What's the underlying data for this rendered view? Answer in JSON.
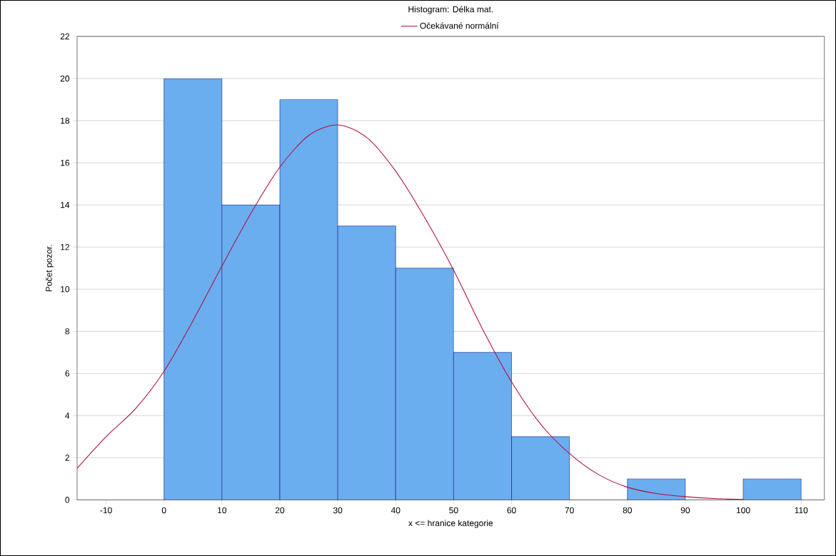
{
  "chart_data": {
    "type": "histogram",
    "title": "Histogram: Délka mat.",
    "xlabel": "x <= hranice kategorie",
    "ylabel": "Počet pozor.",
    "xlim": [
      -15,
      114
    ],
    "xticks": [
      -10,
      0,
      10,
      20,
      30,
      40,
      50,
      60,
      70,
      80,
      90,
      100,
      110
    ],
    "ylim": [
      0,
      22
    ],
    "yticks": [
      0,
      2,
      4,
      6,
      8,
      10,
      12,
      14,
      16,
      18,
      20,
      22
    ],
    "grid": "y",
    "legend": "top",
    "series": [
      {
        "color": "#6aaef0",
        "bins": [
          0,
          10,
          20,
          30,
          40,
          50,
          60,
          70,
          80,
          90,
          100,
          110
        ],
        "values": [
          20,
          14,
          19,
          13,
          11,
          7,
          3,
          0,
          1,
          0,
          1
        ]
      },
      {
        "type": "line",
        "name": "Očekávané normální",
        "color": "#b0103a",
        "x": [
          -15,
          -10,
          -5,
          0,
          5,
          10,
          15,
          20,
          25,
          30,
          35,
          40,
          45,
          50,
          55,
          60,
          65,
          70,
          75,
          80,
          85,
          90,
          95,
          100
        ],
        "values": [
          1.5,
          3,
          4.3,
          6.1,
          8.5,
          11.1,
          13.6,
          15.8,
          17.3,
          17.8,
          17.2,
          15.6,
          13.4,
          10.9,
          8.1,
          5.6,
          3.6,
          2.2,
          1.2,
          0.6,
          0.3,
          0.15,
          0.06,
          0.02
        ]
      }
    ]
  }
}
